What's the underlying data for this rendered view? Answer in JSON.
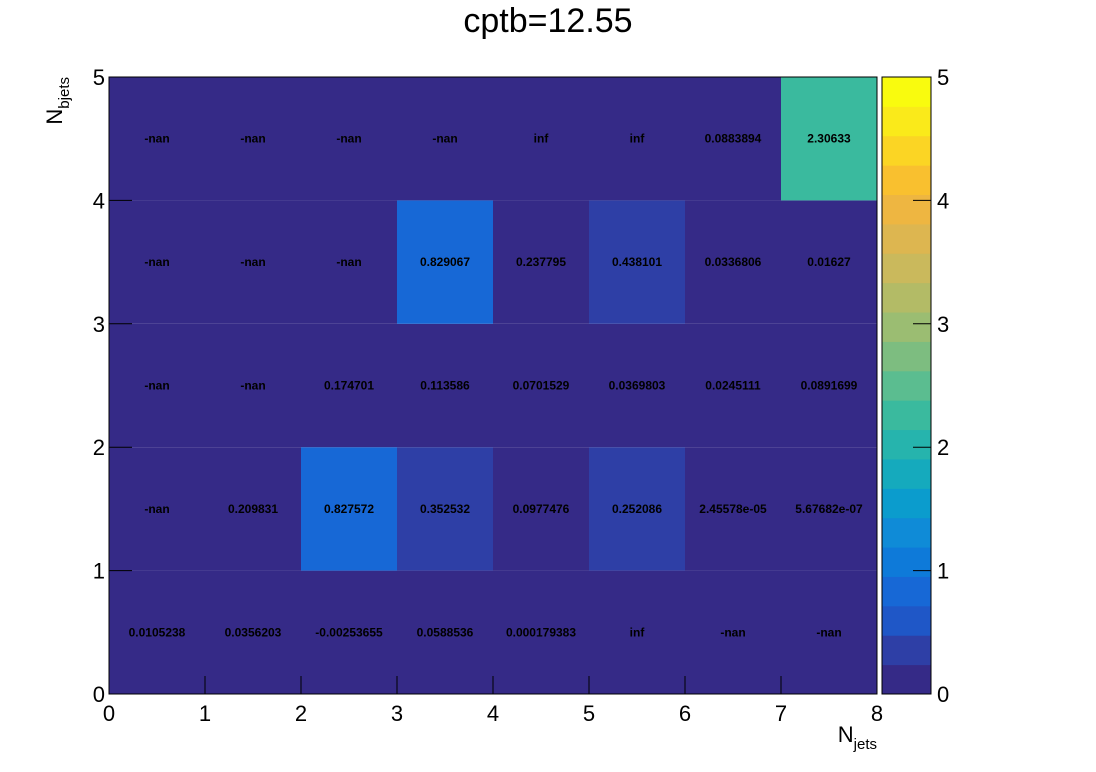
{
  "chart_data": {
    "type": "heatmap",
    "title": "cptb=12.55",
    "xlabel_main": "N",
    "xlabel_sub": "jets",
    "ylabel_main": "N",
    "ylabel_sub": "bjets",
    "xlim": [
      0,
      8
    ],
    "ylim": [
      0,
      5
    ],
    "zlim": [
      0,
      5
    ],
    "x_ticks": [
      "0",
      "1",
      "2",
      "3",
      "4",
      "5",
      "6",
      "7",
      "8"
    ],
    "y_ticks": [
      "0",
      "1",
      "2",
      "3",
      "4",
      "5"
    ],
    "z_ticks": [
      "0",
      "1",
      "2",
      "3",
      "4",
      "5"
    ],
    "colormap": [
      "#352a87",
      "#2e3fa6",
      "#1f57c7",
      "#1768d6",
      "#0e7ad9",
      "#0f8bd7",
      "#0b9ccd",
      "#15aabd",
      "#26b4ad",
      "#3aba9e",
      "#5bbd90",
      "#7dbd80",
      "#9bbd72",
      "#b3bb66",
      "#cab95c",
      "#ddb650",
      "#eeb641",
      "#f9c02f",
      "#fbd524",
      "#faea1a",
      "#f9fb0e"
    ],
    "nan_color": "#352a87",
    "rows": [
      {
        "y": 0,
        "values": [
          0.0105238,
          0.0356203,
          -0.00253655,
          0.0588536,
          0.000179383,
          "inf",
          "-nan",
          "-nan"
        ],
        "labels": [
          "0.0105238",
          "0.0356203",
          "-0.00253655",
          "0.0588536",
          "0.000179383",
          "inf",
          "-nan",
          "-nan"
        ]
      },
      {
        "y": 1,
        "values": [
          "-nan",
          0.209831,
          0.827572,
          0.352532,
          0.0977476,
          0.252086,
          2.45578e-05,
          5.67682e-07
        ],
        "labels": [
          "-nan",
          "0.209831",
          "0.827572",
          "0.352532",
          "0.0977476",
          "0.252086",
          "2.45578e-05",
          "5.67682e-07"
        ]
      },
      {
        "y": 2,
        "values": [
          "-nan",
          "-nan",
          0.174701,
          0.113586,
          0.0701529,
          0.0369803,
          0.0245111,
          0.0891699
        ],
        "labels": [
          "-nan",
          "-nan",
          "0.174701",
          "0.113586",
          "0.0701529",
          "0.0369803",
          "0.0245111",
          "0.0891699"
        ]
      },
      {
        "y": 3,
        "values": [
          "-nan",
          "-nan",
          "-nan",
          0.829067,
          0.237795,
          0.438101,
          0.0336806,
          0.01627
        ],
        "labels": [
          "-nan",
          "-nan",
          "-nan",
          "0.829067",
          "0.237795",
          "0.438101",
          "0.0336806",
          "0.01627"
        ]
      },
      {
        "y": 4,
        "values": [
          "-nan",
          "-nan",
          "-nan",
          "-nan",
          "inf",
          "inf",
          0.0883894,
          2.30633
        ],
        "labels": [
          "-nan",
          "-nan",
          "-nan",
          "-nan",
          "inf",
          "inf",
          "0.0883894",
          "2.30633"
        ]
      }
    ]
  }
}
